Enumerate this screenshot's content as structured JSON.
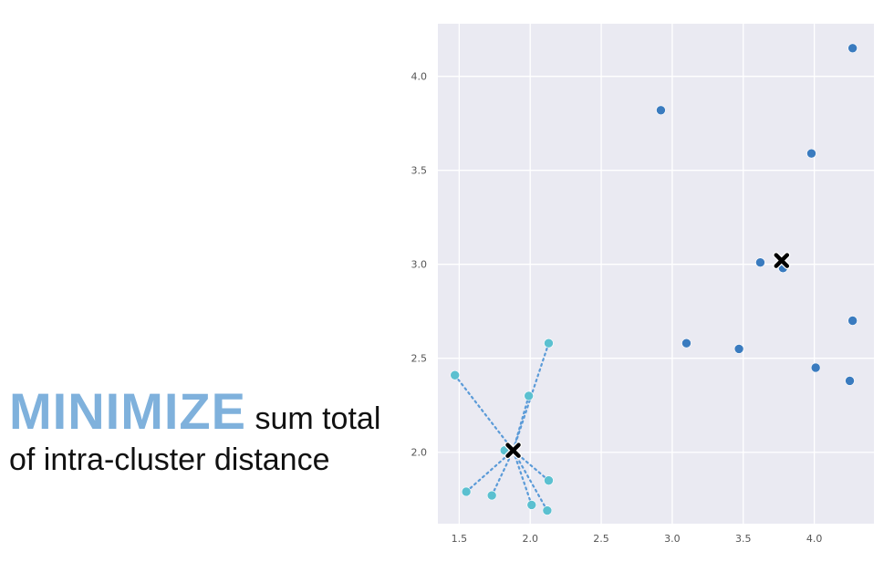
{
  "caption": {
    "emphasis": "MINIMIZE",
    "line1_rest": "sum total",
    "line2": "of intra-cluster distance",
    "emphasis_color": "#7FB1DC"
  },
  "chart_data": {
    "type": "scatter",
    "title": "",
    "xlabel": "",
    "ylabel": "",
    "xlim": [
      1.35,
      4.42
    ],
    "ylim": [
      1.62,
      4.28
    ],
    "xticks": [
      "1.5",
      "2.0",
      "2.5",
      "3.0",
      "3.5",
      "4.0"
    ],
    "yticks": [
      "2.0",
      "2.5",
      "3.0",
      "3.5",
      "4.0"
    ],
    "grid": true,
    "background": "#EAEAF2",
    "series": [
      {
        "color": "#3A7BBF",
        "points": [
          [
            2.92,
            3.82
          ],
          [
            4.27,
            4.15
          ],
          [
            3.98,
            3.59
          ],
          [
            3.62,
            3.01
          ],
          [
            3.78,
            2.98
          ],
          [
            3.1,
            2.58
          ],
          [
            3.47,
            2.55
          ],
          [
            4.27,
            2.7
          ],
          [
            4.01,
            2.45
          ],
          [
            4.25,
            2.38
          ]
        ],
        "centroid": [
          3.77,
          3.02
        ]
      },
      {
        "color": "#5BC0D0",
        "points": [
          [
            1.47,
            2.41
          ],
          [
            2.13,
            2.58
          ],
          [
            1.99,
            2.3
          ],
          [
            1.82,
            2.01
          ],
          [
            1.55,
            1.79
          ],
          [
            1.73,
            1.77
          ],
          [
            2.13,
            1.85
          ],
          [
            2.01,
            1.72
          ],
          [
            2.12,
            1.69
          ]
        ],
        "centroid": [
          1.88,
          2.01
        ]
      }
    ]
  }
}
